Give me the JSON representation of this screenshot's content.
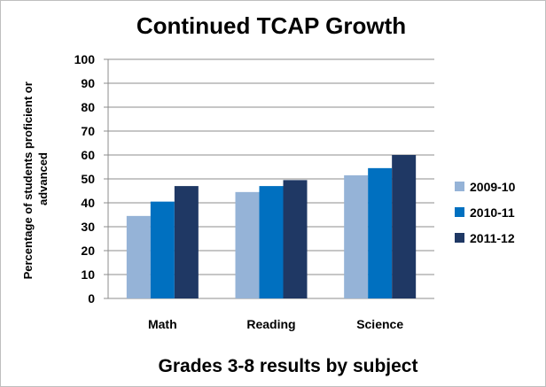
{
  "chart_data": {
    "type": "bar",
    "title": "Continued TCAP Growth",
    "xlabel": "Grades 3-8 results by subject",
    "ylabel_lines": [
      "Percentage of students proficient or",
      "advanced"
    ],
    "categories": [
      "Math",
      "Reading",
      "Science"
    ],
    "yticks": [
      "0",
      "10",
      "20",
      "30",
      "40",
      "50",
      "60",
      "70",
      "80",
      "90",
      "100"
    ],
    "ylim": [
      0,
      100
    ],
    "grid": true,
    "legend_position": "right",
    "series": [
      {
        "name": "2009-10",
        "color": "#95b3d7",
        "values": [
          34.5,
          44.5,
          51.5
        ]
      },
      {
        "name": "2010-11",
        "color": "#0070c0",
        "values": [
          40.5,
          47,
          54.5
        ]
      },
      {
        "name": "2011-12",
        "color": "#1f3864",
        "values": [
          47,
          49.5,
          60
        ]
      }
    ]
  }
}
